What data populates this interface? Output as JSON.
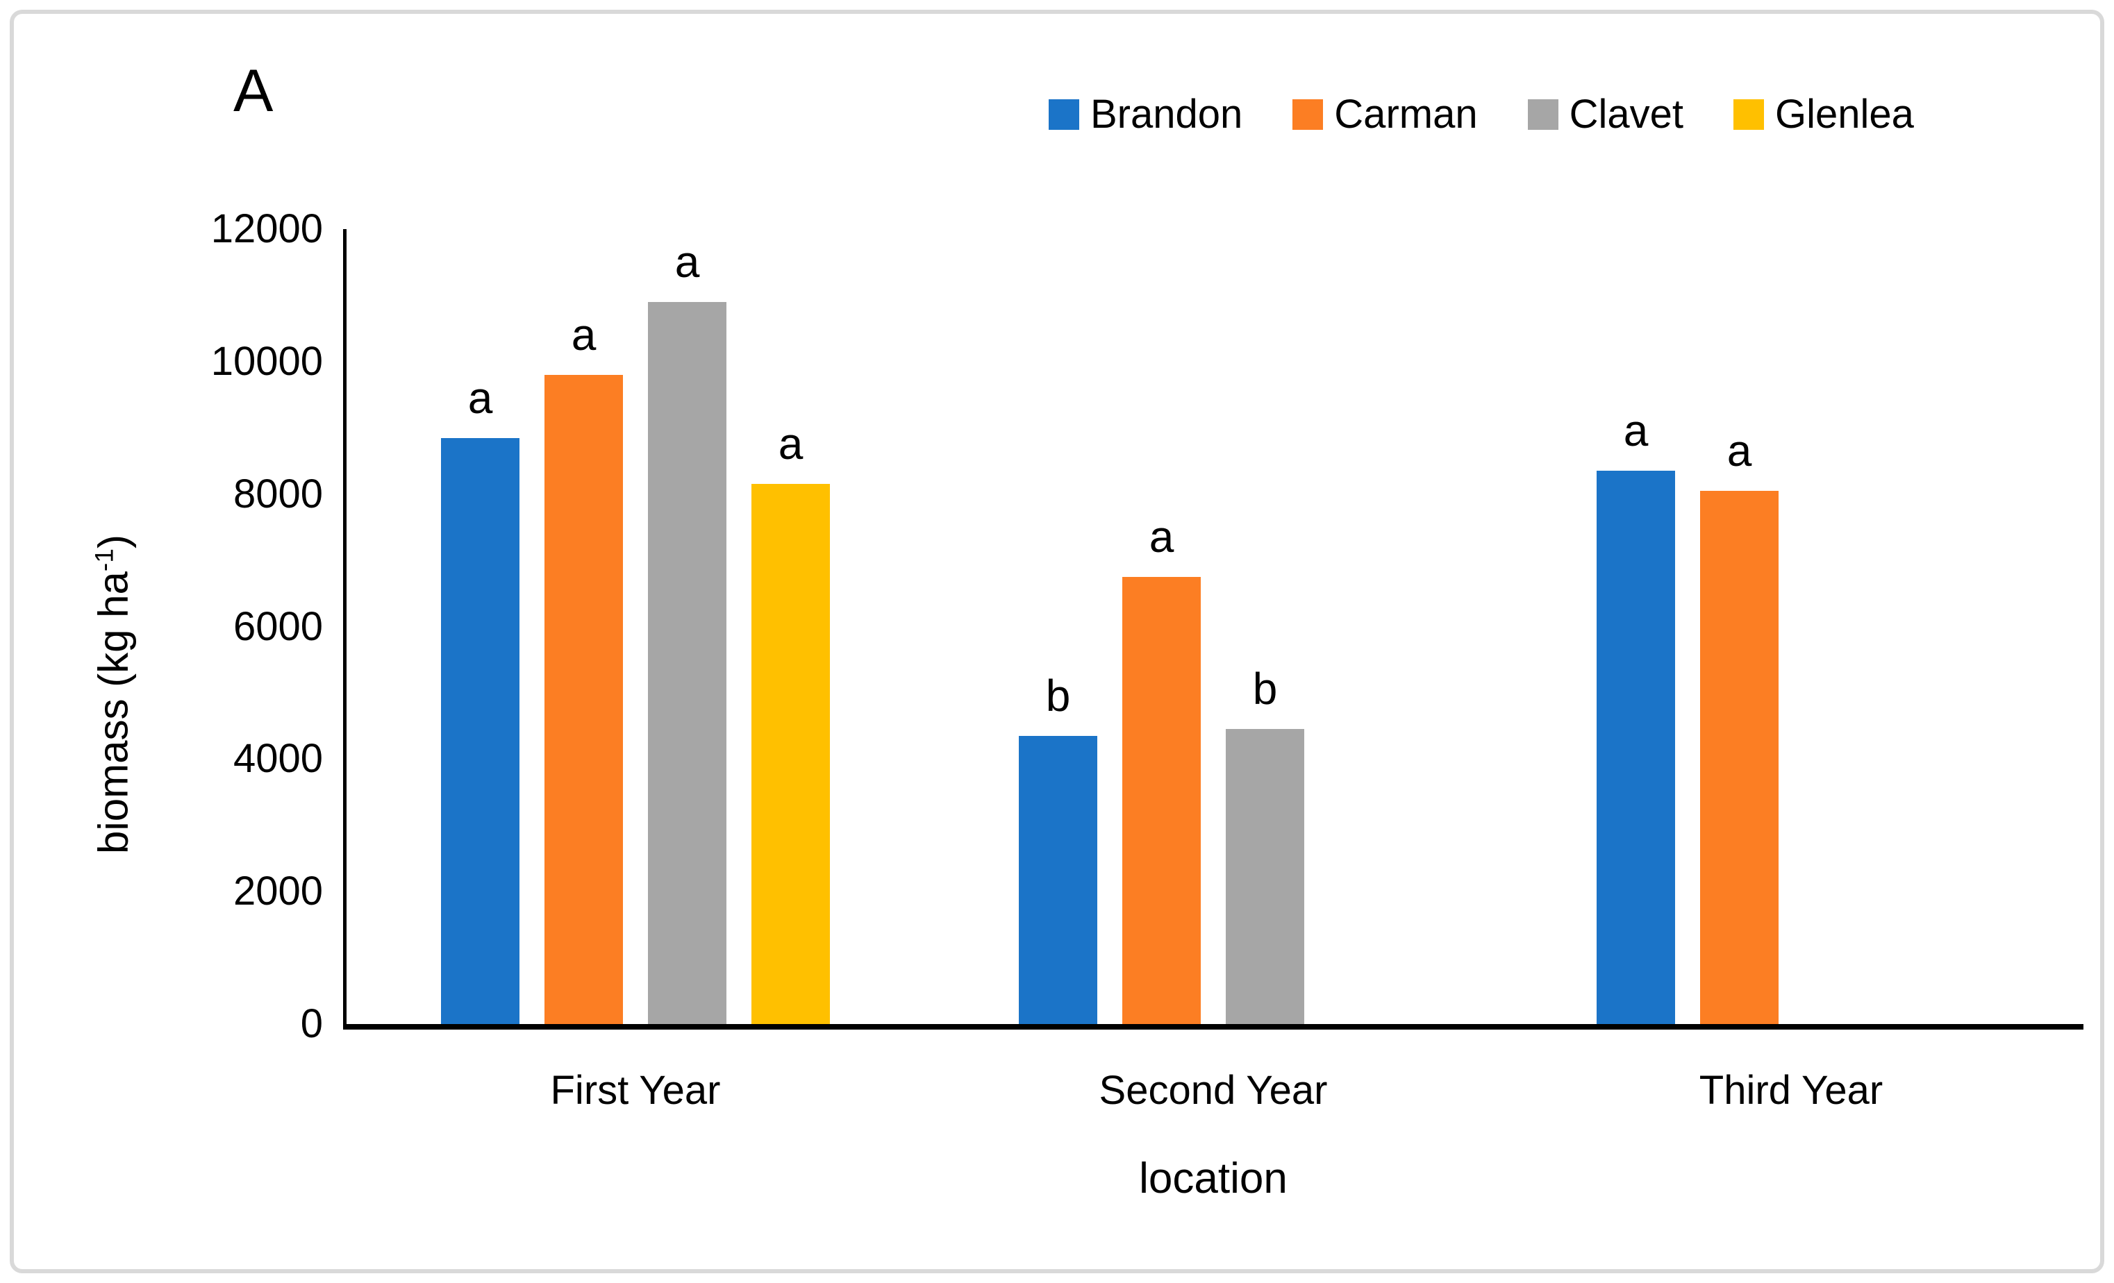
{
  "panel_label": "A",
  "colors": {
    "brandon_blue": "#1B74C8",
    "carman_orange": "#FC7E23",
    "clavet_gray": "#A6A6A6",
    "glenlea_yellow": "#FFC000",
    "axis_black": "#000000",
    "frame_border_gray": "#D9D9D9"
  },
  "legend": {
    "position": "top-right",
    "items": [
      {
        "label": "Brandon",
        "color": "#1B74C8"
      },
      {
        "label": "Carman",
        "color": "#FC7E23"
      },
      {
        "label": "Clavet",
        "color": "#A6A6A6"
      },
      {
        "label": "Glenlea",
        "color": "#FFC000"
      }
    ]
  },
  "y_axis": {
    "title_prefix": "biomass (kg ha",
    "title_superscript": "-1",
    "title_suffix": ")",
    "tick_labels": [
      "12000",
      "10000",
      "8000",
      "6000",
      "4000",
      "2000",
      "0"
    ],
    "min": 0,
    "max": 12000
  },
  "x_axis": {
    "title": "location",
    "categories": [
      "First Year",
      "Second Year",
      "Third Year"
    ]
  },
  "chart_data": {
    "type": "bar",
    "title": "A",
    "xlabel": "location",
    "ylabel": "biomass (kg ha-1)",
    "ylim": [
      0,
      12000
    ],
    "y_tick_step": 2000,
    "grid": false,
    "legend_position": "top-right",
    "categories": [
      "First Year",
      "Second Year",
      "Third Year"
    ],
    "series": [
      {
        "name": "Brandon",
        "color": "#1B74C8",
        "values": [
          8850,
          4350,
          8350
        ],
        "sig_letters": [
          "a",
          "b",
          "a"
        ]
      },
      {
        "name": "Carman",
        "color": "#FC7E23",
        "values": [
          9800,
          6750,
          8050
        ],
        "sig_letters": [
          "a",
          "a",
          "a"
        ]
      },
      {
        "name": "Clavet",
        "color": "#A6A6A6",
        "values": [
          10900,
          4450,
          null
        ],
        "sig_letters": [
          "a",
          "b",
          null
        ]
      },
      {
        "name": "Glenlea",
        "color": "#FFC000",
        "values": [
          8150,
          null,
          null
        ],
        "sig_letters": [
          "a",
          null,
          null
        ]
      }
    ]
  }
}
